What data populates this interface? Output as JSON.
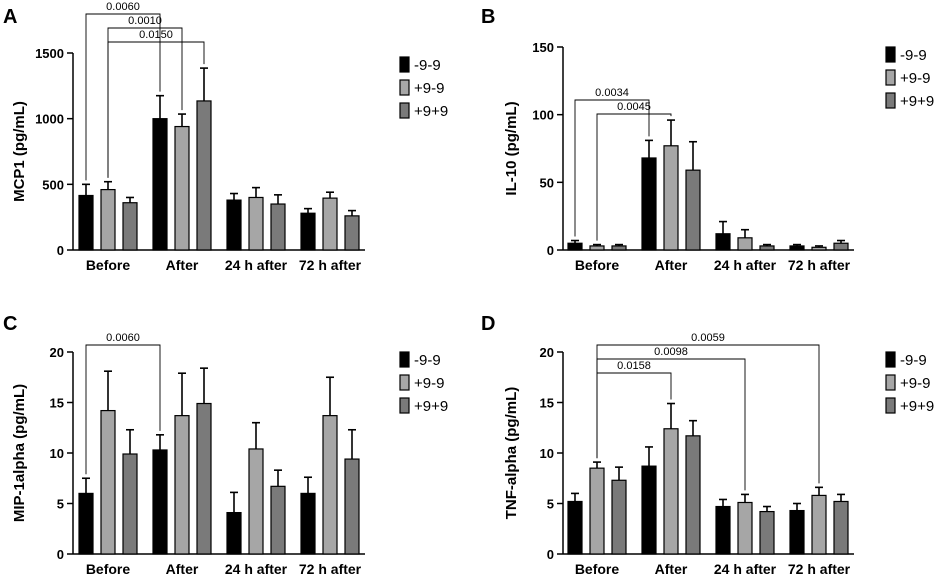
{
  "colors": {
    "-9-9": "#000000",
    "+9-9": "#a6a6a6",
    "+9+9": "#7a7a7a",
    "axis": "#000000"
  },
  "chart_data": [
    {
      "panel": "A",
      "type": "bar",
      "ylabel": "MCP1 (pg/mL)",
      "ylim": [
        0,
        1500
      ],
      "yticks": [
        0,
        500,
        1000,
        1500
      ],
      "categories": [
        "Before",
        "After",
        "24 h after",
        "72 h after"
      ],
      "series": [
        {
          "name": "-9-9",
          "values": [
            415,
            1000,
            380,
            280
          ],
          "errors": [
            85,
            175,
            50,
            35
          ]
        },
        {
          "name": "+9-9",
          "values": [
            460,
            940,
            400,
            395
          ],
          "errors": [
            60,
            95,
            75,
            45
          ]
        },
        {
          "name": "+9+9",
          "values": [
            360,
            1135,
            350,
            260
          ],
          "errors": [
            40,
            250,
            70,
            40
          ]
        }
      ],
      "annotations": [
        {
          "label": "0.0060",
          "from": [
            0,
            0
          ],
          "to": [
            1,
            0
          ]
        },
        {
          "label": "0.0010",
          "from": [
            0,
            1
          ],
          "to": [
            1,
            1
          ]
        },
        {
          "label": "0.0150",
          "from": [
            0,
            1
          ],
          "to": [
            1,
            2
          ]
        }
      ]
    },
    {
      "panel": "B",
      "type": "bar",
      "ylabel": "IL-10 (pg/mL)",
      "ylim": [
        0,
        150
      ],
      "yticks": [
        0,
        50,
        100,
        150
      ],
      "categories": [
        "Before",
        "After",
        "24 h after",
        "72 h after"
      ],
      "series": [
        {
          "name": "-9-9",
          "values": [
            5,
            68,
            12,
            3
          ],
          "errors": [
            2,
            13,
            9,
            1
          ]
        },
        {
          "name": "+9-9",
          "values": [
            3,
            77,
            9,
            2
          ],
          "errors": [
            1,
            19,
            6,
            1
          ]
        },
        {
          "name": "+9+9",
          "values": [
            3,
            59,
            3,
            5
          ],
          "errors": [
            1,
            21,
            1,
            2
          ]
        }
      ],
      "annotations": [
        {
          "label": "0.0034",
          "from": [
            0,
            0
          ],
          "to": [
            1,
            0
          ]
        },
        {
          "label": "0.0045",
          "from": [
            0,
            1
          ],
          "to": [
            1,
            1
          ]
        }
      ]
    },
    {
      "panel": "C",
      "type": "bar",
      "ylabel": "MIP-1alpha (pg/mL)",
      "ylim": [
        0,
        20
      ],
      "yticks": [
        0,
        5,
        10,
        15,
        20
      ],
      "categories": [
        "Before",
        "After",
        "24 h after",
        "72 h after"
      ],
      "series": [
        {
          "name": "-9-9",
          "values": [
            6,
            10.3,
            4.1,
            6
          ],
          "errors": [
            1.5,
            1.5,
            2,
            1.6
          ]
        },
        {
          "name": "+9-9",
          "values": [
            14.2,
            13.7,
            10.4,
            13.7
          ],
          "errors": [
            3.9,
            4.2,
            2.6,
            3.8
          ]
        },
        {
          "name": "+9+9",
          "values": [
            9.9,
            14.9,
            6.7,
            9.4
          ],
          "errors": [
            2.4,
            3.5,
            1.6,
            2.9
          ]
        }
      ],
      "annotations": [
        {
          "label": "0.0060",
          "from": [
            0,
            0
          ],
          "to": [
            1,
            0
          ]
        }
      ]
    },
    {
      "panel": "D",
      "type": "bar",
      "ylabel": "TNF-alpha (pg/mL)",
      "ylim": [
        0,
        20
      ],
      "yticks": [
        0,
        5,
        10,
        15,
        20
      ],
      "categories": [
        "Before",
        "After",
        "24 h after",
        "72 h after"
      ],
      "series": [
        {
          "name": "-9-9",
          "values": [
            5.2,
            8.7,
            4.7,
            4.3
          ],
          "errors": [
            0.8,
            1.9,
            0.7,
            0.7
          ]
        },
        {
          "name": "+9-9",
          "values": [
            8.5,
            12.4,
            5.1,
            5.8
          ],
          "errors": [
            0.6,
            2.5,
            0.8,
            0.8
          ]
        },
        {
          "name": "+9+9",
          "values": [
            7.3,
            11.7,
            4.2,
            5.2
          ],
          "errors": [
            1.3,
            1.5,
            0.5,
            0.7
          ]
        }
      ],
      "annotations": [
        {
          "label": "0.0059",
          "from": [
            0,
            1
          ],
          "to": [
            3,
            1
          ]
        },
        {
          "label": "0.0098",
          "from": [
            0,
            1
          ],
          "to": [
            2,
            1
          ]
        },
        {
          "label": "0.0158",
          "from": [
            0,
            1
          ],
          "to": [
            1,
            1
          ]
        }
      ]
    }
  ]
}
